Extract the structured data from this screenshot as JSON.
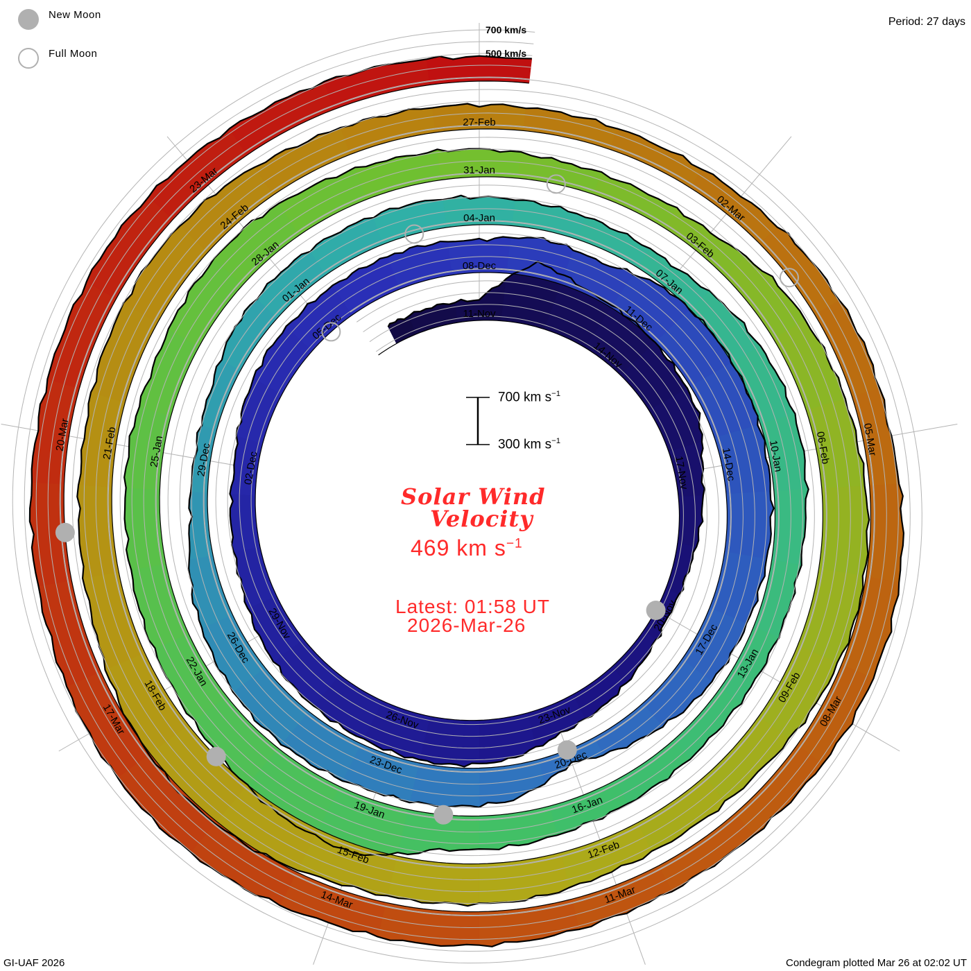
{
  "legend": {
    "new_moon": "New Moon",
    "full_moon": "Full Moon"
  },
  "period": "Period: 27 days",
  "footer_left": "GI-UAF 2026",
  "footer_right": "Condegram plotted Mar 26 at 02:02 UT",
  "scale_bar": {
    "top_value": "700 km s",
    "bottom_value": "300 km s",
    "exp": "−1"
  },
  "center": {
    "title_line1": "Solar Wind",
    "title_line2": "Velocity",
    "current_value": "469 km s",
    "exp": "−1",
    "latest": "Latest: 01:58 UT",
    "date": "2026-Mar-26"
  },
  "colors": {
    "text_red": "#ff2a2a",
    "moon": "#b0b0b0",
    "grid": "#b4b4b4",
    "ramp": [
      "#120a45",
      "#1c1488",
      "#2a30b8",
      "#3070c0",
      "#30b0a8",
      "#40c068",
      "#70c030",
      "#b0a818",
      "#b88010",
      "#c05010",
      "#c01010"
    ]
  },
  "chart_data": {
    "type": "condegram-spiral",
    "title": "Solar Wind Velocity",
    "units": "km/s",
    "period_days": 27,
    "first_label_day_index": 2,
    "reference_lines": [
      "700 km/s",
      "500 km/s"
    ],
    "grid_levels": [
      300,
      400,
      500,
      600,
      700
    ],
    "values": [
      430,
      440,
      440,
      800,
      700,
      680,
      650,
      620,
      500,
      450,
      400,
      380,
      420,
      480,
      520,
      620,
      650,
      640,
      620,
      600,
      560,
      500,
      480,
      460,
      520,
      560,
      560,
      560,
      560,
      540,
      600,
      560,
      660,
      680,
      670,
      650,
      640,
      620,
      600,
      560,
      480,
      380,
      560,
      600,
      600,
      620,
      620,
      580,
      520,
      420,
      400,
      420,
      500,
      520,
      520,
      520,
      500,
      480,
      460,
      450,
      520,
      560,
      560,
      520,
      500,
      480,
      470,
      480,
      500,
      540,
      560,
      750,
      720,
      640,
      600,
      580,
      560,
      560,
      540,
      580,
      600,
      560,
      520,
      500,
      460,
      450,
      460,
      560,
      600,
      620,
      650,
      660,
      620,
      560,
      540,
      550,
      600,
      610,
      620,
      680,
      700,
      660,
      580,
      550,
      540,
      580,
      600,
      580,
      520,
      490,
      470,
      460,
      450,
      460,
      500,
      520,
      500,
      540,
      560,
      550,
      520,
      500,
      510,
      540,
      560,
      560,
      600,
      620,
      600,
      560,
      550,
      540,
      550,
      560,
      540,
      520,
      500,
      470
    ],
    "date_labels": [
      "11-Nov",
      "14-Nov",
      "17-Nov",
      "20-Nov",
      "23-Nov",
      "26-Nov",
      "29-Nov",
      "02-Dec",
      "05-Dec",
      "08-Dec",
      "11-Dec",
      "14-Dec",
      "17-Dec",
      "20-Dec",
      "23-Dec",
      "26-Dec",
      "29-Dec",
      "01-Jan",
      "04-Jan",
      "07-Jan",
      "10-Jan",
      "13-Jan",
      "16-Jan",
      "19-Jan",
      "22-Jan",
      "25-Jan",
      "28-Jan",
      "31-Jan",
      "03-Feb",
      "06-Feb",
      "09-Feb",
      "12-Feb",
      "15-Feb",
      "18-Feb",
      "21-Feb",
      "24-Feb",
      "27-Feb",
      "02-Mar",
      "05-Mar",
      "08-Mar",
      "11-Mar",
      "14-Mar",
      "17-Mar",
      "20-Mar",
      "23-Mar"
    ],
    "new_moon_day_index": [
      11,
      41,
      70,
      100,
      130
    ],
    "full_moon_day_index": [
      26,
      55,
      84,
      114
    ]
  }
}
